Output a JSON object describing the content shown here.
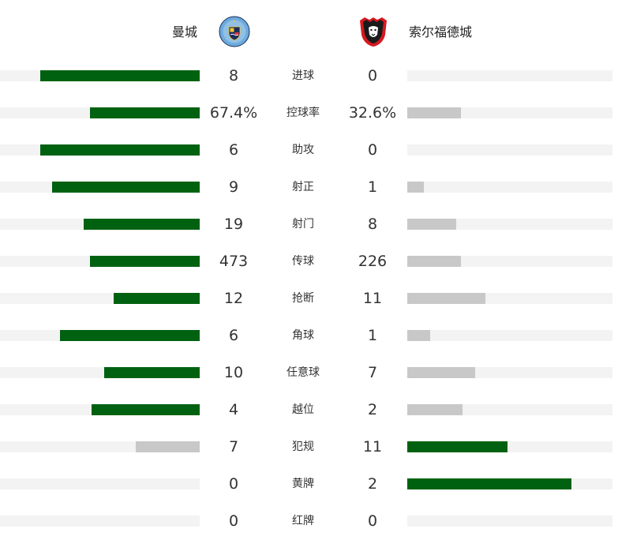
{
  "colors": {
    "leader": "#006111",
    "trailer": "#c8c8c8",
    "track": "#f3f3f3"
  },
  "home_team": {
    "name": "曼城",
    "crest_icon": "manchester-city-crest-icon"
  },
  "away_team": {
    "name": "索尔福德城",
    "crest_icon": "salford-city-lion-crest-icon"
  },
  "stats": [
    {
      "label": "进球",
      "home": "8",
      "away": "0",
      "home_share": 0.8,
      "away_share": 0.0,
      "home_leads": true,
      "away_leads": false
    },
    {
      "label": "控球率",
      "home": "67.4%",
      "away": "32.6%",
      "home_share": 0.55,
      "away_share": 0.26,
      "home_leads": true,
      "away_leads": false
    },
    {
      "label": "助攻",
      "home": "6",
      "away": "0",
      "home_share": 0.8,
      "away_share": 0.0,
      "home_leads": true,
      "away_leads": false
    },
    {
      "label": "射正",
      "home": "9",
      "away": "1",
      "home_share": 0.74,
      "away_share": 0.08,
      "home_leads": true,
      "away_leads": false
    },
    {
      "label": "射门",
      "home": "19",
      "away": "8",
      "home_share": 0.58,
      "away_share": 0.24,
      "home_leads": true,
      "away_leads": false
    },
    {
      "label": "传球",
      "home": "473",
      "away": "226",
      "home_share": 0.55,
      "away_share": 0.26,
      "home_leads": true,
      "away_leads": false
    },
    {
      "label": "抢断",
      "home": "12",
      "away": "11",
      "home_share": 0.43,
      "away_share": 0.38,
      "home_leads": true,
      "away_leads": false
    },
    {
      "label": "角球",
      "home": "6",
      "away": "1",
      "home_share": 0.7,
      "away_share": 0.11,
      "home_leads": true,
      "away_leads": false
    },
    {
      "label": "任意球",
      "home": "10",
      "away": "7",
      "home_share": 0.48,
      "away_share": 0.33,
      "home_leads": true,
      "away_leads": false
    },
    {
      "label": "越位",
      "home": "4",
      "away": "2",
      "home_share": 0.54,
      "away_share": 0.27,
      "home_leads": true,
      "away_leads": false
    },
    {
      "label": "犯规",
      "home": "7",
      "away": "11",
      "home_share": 0.32,
      "away_share": 0.49,
      "home_leads": false,
      "away_leads": true
    },
    {
      "label": "黄牌",
      "home": "0",
      "away": "2",
      "home_share": 0.0,
      "away_share": 0.8,
      "home_leads": false,
      "away_leads": true
    },
    {
      "label": "红牌",
      "home": "0",
      "away": "0",
      "home_share": 0.0,
      "away_share": 0.0,
      "home_leads": false,
      "away_leads": false
    }
  ]
}
